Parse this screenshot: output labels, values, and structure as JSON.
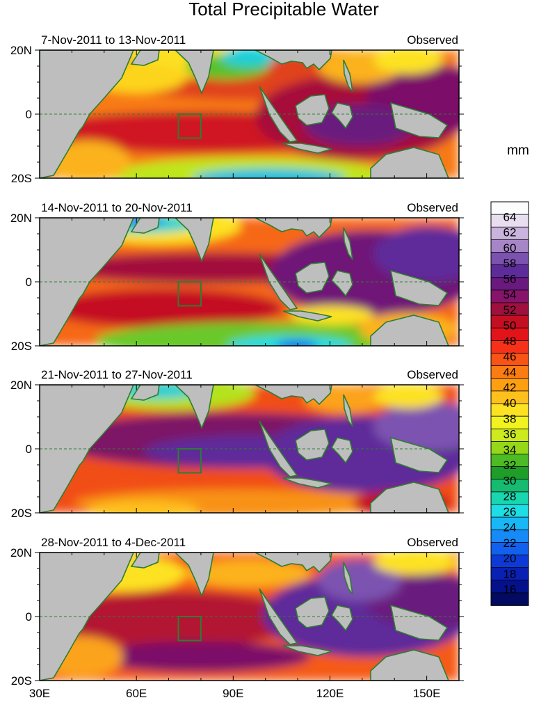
{
  "title": "Total Precipitable Water",
  "units_label": "mm",
  "chart_data": {
    "type": "heatmap",
    "title": "Total Precipitable Water",
    "units": "mm",
    "xlim": [
      30,
      160
    ],
    "ylim": [
      -20,
      20
    ],
    "x_ticks": [
      {
        "value": 30,
        "label": "30E"
      },
      {
        "value": 60,
        "label": "60E"
      },
      {
        "value": 90,
        "label": "90E"
      },
      {
        "value": 120,
        "label": "120E"
      },
      {
        "value": 150,
        "label": "150E"
      }
    ],
    "y_ticks": [
      {
        "value": 20,
        "label": "20N"
      },
      {
        "value": 0,
        "label": "0"
      },
      {
        "value": -20,
        "label": "20S"
      }
    ],
    "reference_box": {
      "lon": [
        73,
        80
      ],
      "lat": [
        -7.5,
        0
      ]
    },
    "panels": [
      {
        "period": "7-Nov-2011 to 13-Nov-2011",
        "tag": "Observed"
      },
      {
        "period": "14-Nov-2011 to 20-Nov-2011",
        "tag": "Observed"
      },
      {
        "period": "21-Nov-2011 to 27-Nov-2011",
        "tag": "Observed"
      },
      {
        "period": "28-Nov-2011 to 4-Dec-2011",
        "tag": "Observed"
      }
    ],
    "colorbar": {
      "labels": [
        "64",
        "62",
        "60",
        "58",
        "56",
        "54",
        "52",
        "50",
        "48",
        "46",
        "44",
        "42",
        "40",
        "38",
        "36",
        "34",
        "32",
        "30",
        "28",
        "26",
        "24",
        "22",
        "20",
        "18",
        "16"
      ],
      "colors": [
        "#fcfcfc",
        "#e8def0",
        "#cab4de",
        "#a786c8",
        "#7c52b0",
        "#5e2c9a",
        "#6a1a7e",
        "#86146a",
        "#a0103e",
        "#c40f22",
        "#e2141a",
        "#f7301a",
        "#f85416",
        "#fb7c12",
        "#fd9f10",
        "#fec01c",
        "#fde224",
        "#f2f221",
        "#cdea1e",
        "#96d719",
        "#4cbb24",
        "#1e9e28",
        "#15bb70",
        "#18d7b0",
        "#1cdee4",
        "#18b8f6",
        "#168af7",
        "#1260ee",
        "#0d3ad6",
        "#0820b4",
        "#05118a",
        "#030a62"
      ],
      "cells": 32
    }
  }
}
